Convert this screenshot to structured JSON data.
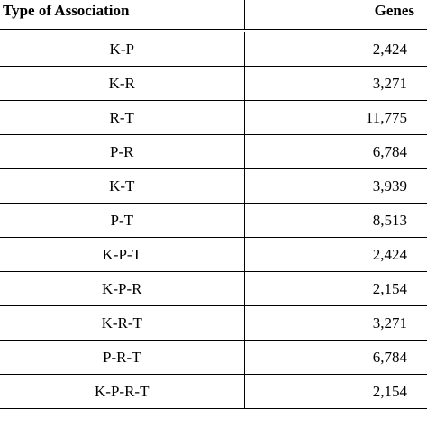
{
  "table": {
    "headers": {
      "type": "Type of Association",
      "genes": "Genes"
    },
    "rows": [
      {
        "type": "K-P",
        "genes": "2,424"
      },
      {
        "type": "K-R",
        "genes": "3,271"
      },
      {
        "type": "R-T",
        "genes": "11,775"
      },
      {
        "type": "P-R",
        "genes": "6,784"
      },
      {
        "type": "K-T",
        "genes": "3,939"
      },
      {
        "type": "P-T",
        "genes": "8,513"
      },
      {
        "type": "K-P-T",
        "genes": "2,424"
      },
      {
        "type": "K-P-R",
        "genes": "2,154"
      },
      {
        "type": "K-R-T",
        "genes": "3,271"
      },
      {
        "type": "P-R-T",
        "genes": "6,784"
      },
      {
        "type": "K-P-R-T",
        "genes": "2,154"
      }
    ]
  }
}
